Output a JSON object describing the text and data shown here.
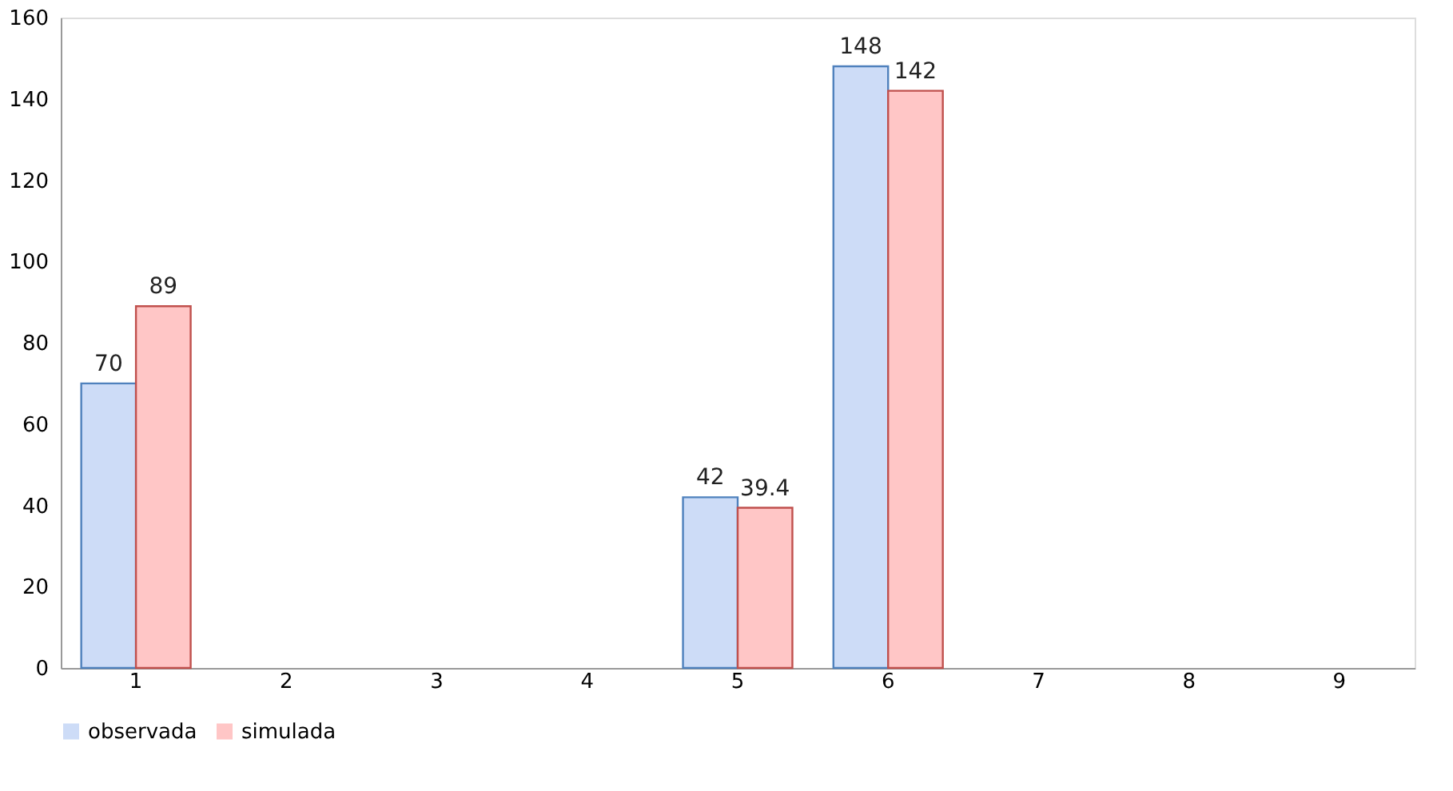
{
  "chart_data": {
    "type": "bar",
    "categories": [
      "1",
      "2",
      "3",
      "4",
      "5",
      "6",
      "7",
      "8",
      "9"
    ],
    "series": [
      {
        "name": "observada",
        "color": "#cddcf7",
        "values": [
          70,
          null,
          null,
          null,
          42,
          148,
          null,
          null,
          null
        ]
      },
      {
        "name": "simulada",
        "color": "#ffc6c6",
        "values": [
          89,
          null,
          null,
          null,
          39.4,
          142,
          null,
          null,
          null
        ]
      }
    ],
    "ylim": [
      0,
      160
    ],
    "yticks": [
      0,
      20,
      40,
      60,
      80,
      100,
      120,
      140,
      160
    ],
    "grid": false,
    "legend": "bottom",
    "data_labels": true
  }
}
